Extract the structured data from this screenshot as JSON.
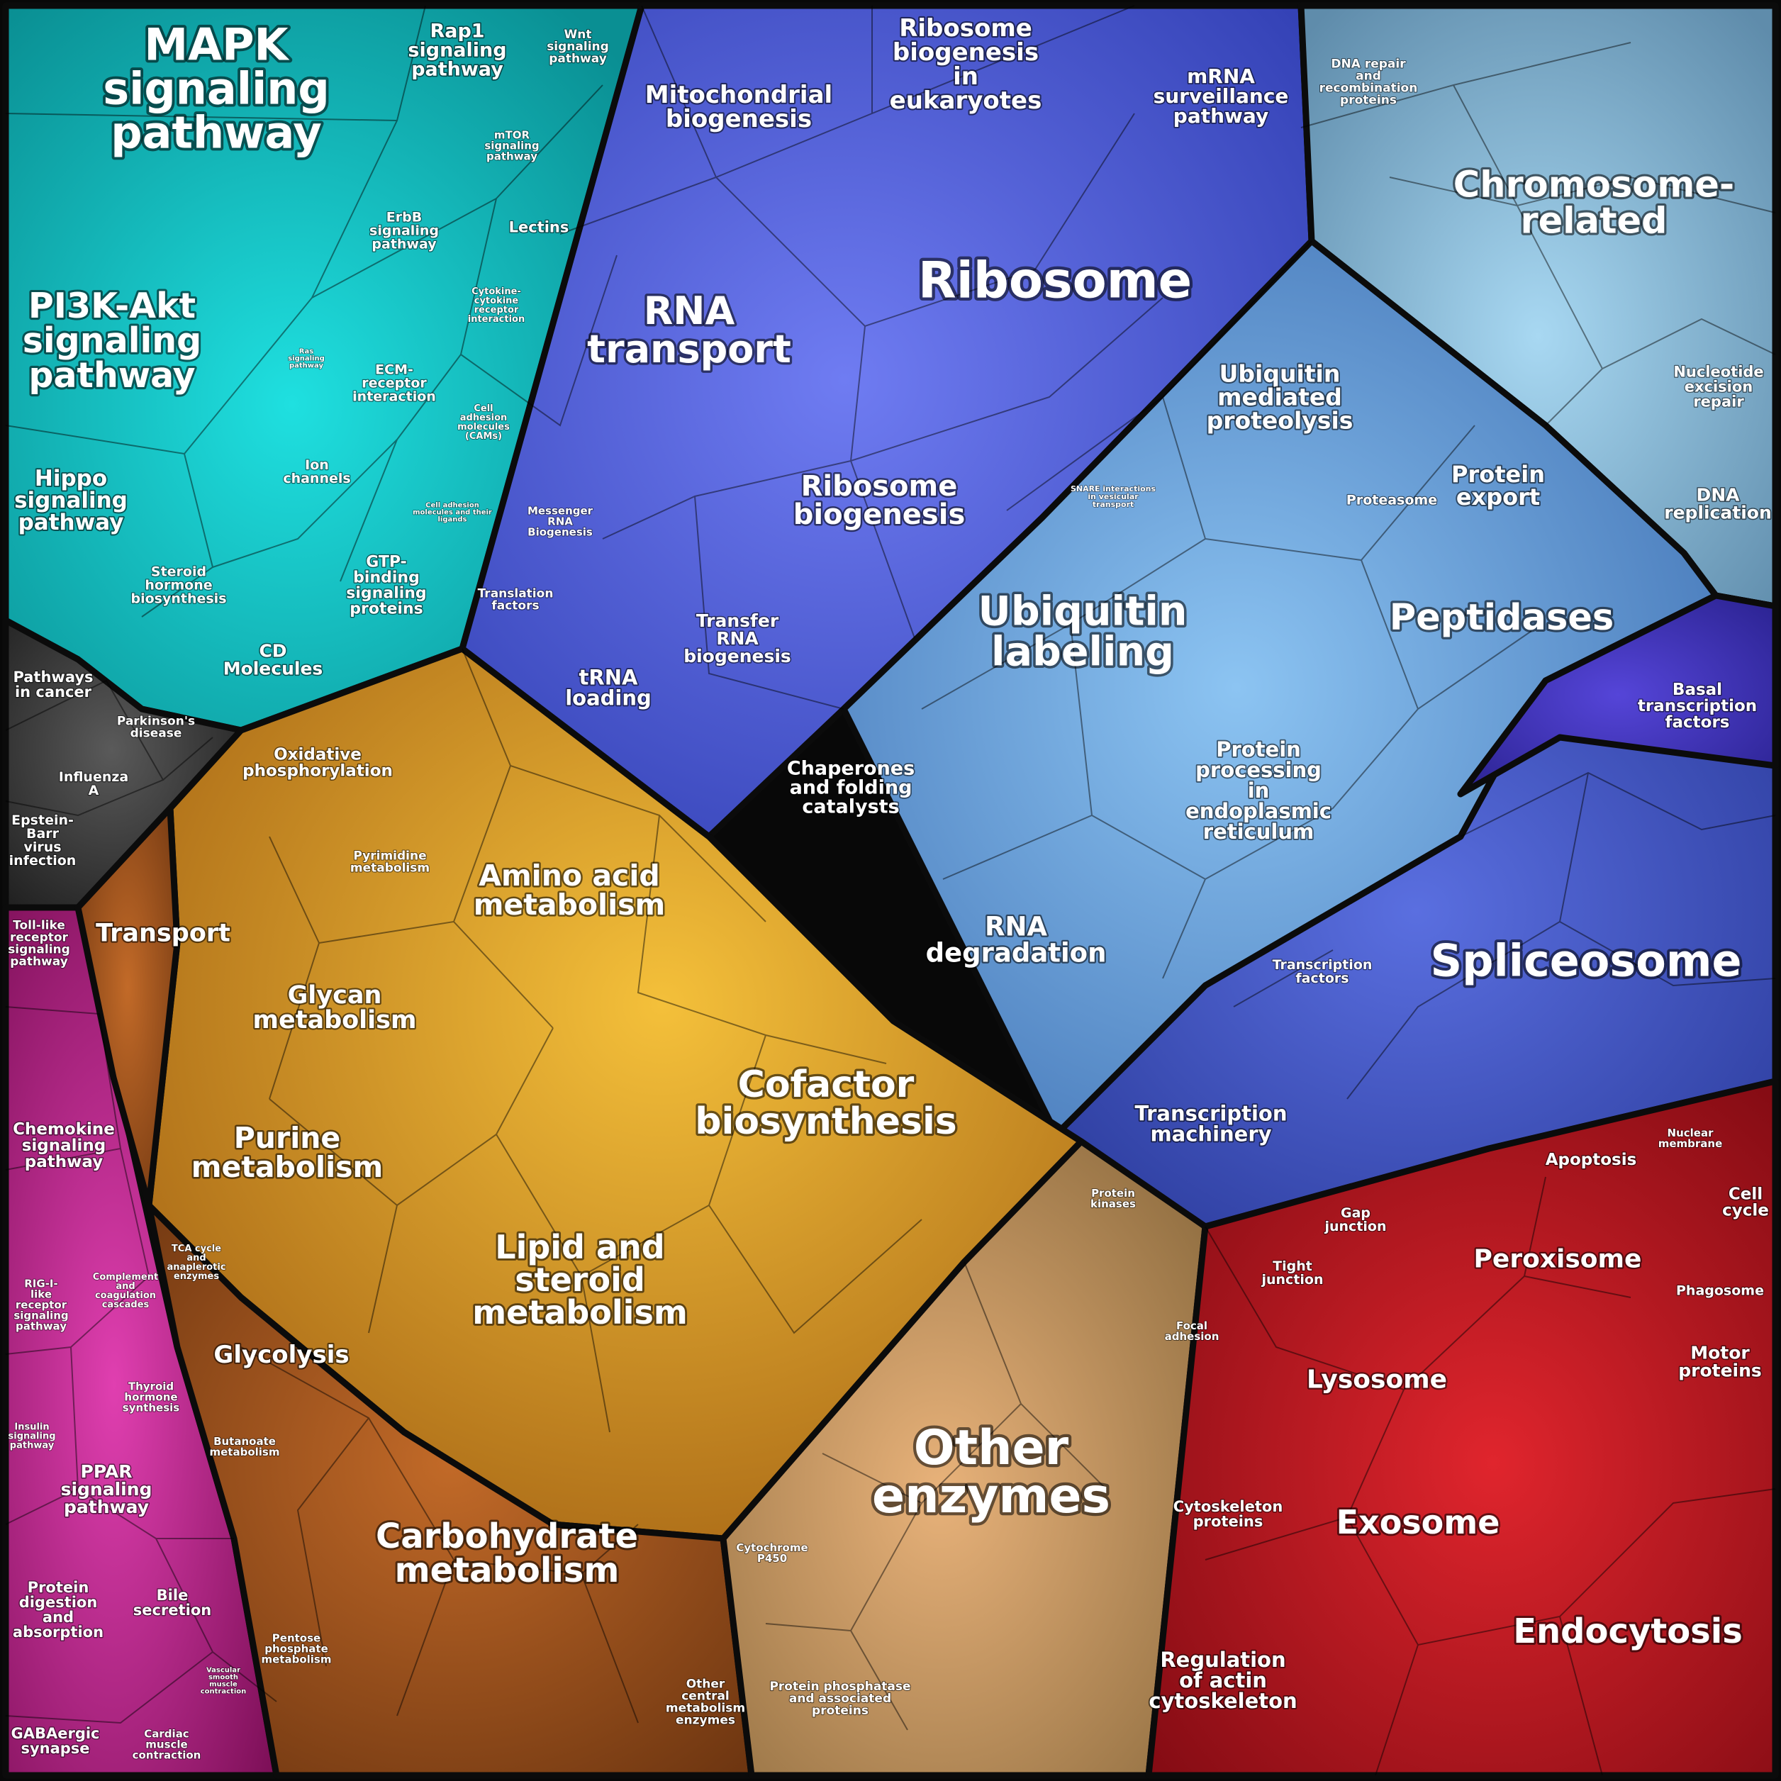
{
  "title": "",
  "groups": [
    {
      "name": "signaling",
      "color": "#14b4b4"
    },
    {
      "name": "genetic-information",
      "color": "#4b5fd8"
    },
    {
      "name": "chromosome-and-repair",
      "color": "#7db4d4"
    },
    {
      "name": "protein-processing",
      "color": "#4f8fd0"
    },
    {
      "name": "metabolism",
      "color": "#cf8a1e"
    },
    {
      "name": "other-enzymes",
      "color": "#b99565"
    },
    {
      "name": "cellular-processes",
      "color": "#c41e28"
    },
    {
      "name": "organismal-systems",
      "color": "#b8157e"
    },
    {
      "name": "human-diseases",
      "color": "#3a3a3a"
    }
  ],
  "labels": [
    {
      "text": "MAPK signaling pathway"
    },
    {
      "text": "Rap1 signaling pathway"
    },
    {
      "text": "Wnt signaling pathway"
    },
    {
      "text": "mTOR signaling pathway"
    },
    {
      "text": "ErbB signaling pathway"
    },
    {
      "text": "Lectins"
    },
    {
      "text": "PI3K-Akt signaling pathway"
    },
    {
      "text": "Ras signaling pathway"
    },
    {
      "text": "Cytokine-cytokine receptor interaction"
    },
    {
      "text": "ECM-receptor interaction"
    },
    {
      "text": "Cell adhesion molecules (CAMs)"
    },
    {
      "text": "Hippo signaling pathway"
    },
    {
      "text": "Ion channels"
    },
    {
      "text": "Cell adhesion molecules and their ligands"
    },
    {
      "text": "Steroid hormone biosynthesis"
    },
    {
      "text": "GTP-binding signaling proteins"
    },
    {
      "text": "CD Molecules"
    },
    {
      "text": "Mitochondrial biogenesis"
    },
    {
      "text": "Ribosome biogenesis in eukaryotes"
    },
    {
      "text": "mRNA surveillance pathway"
    },
    {
      "text": "DNA repair and recombination proteins"
    },
    {
      "text": "Chromosome-related"
    },
    {
      "text": "Ribosome"
    },
    {
      "text": "RNA transport"
    },
    {
      "text": "Ubiquitin mediated proteolysis"
    },
    {
      "text": "Nucleotide excision repair"
    },
    {
      "text": "Ribosome biogenesis"
    },
    {
      "text": "SNARE interactions in vesicular transport"
    },
    {
      "text": "Proteasome"
    },
    {
      "text": "Protein export"
    },
    {
      "text": "DNA replication"
    },
    {
      "text": "Messenger RNA Biogenesis"
    },
    {
      "text": "Translation factors"
    },
    {
      "text": "Transfer RNA biogenesis"
    },
    {
      "text": "tRNA loading"
    },
    {
      "text": "Ubiquitin labeling"
    },
    {
      "text": "Peptidases"
    },
    {
      "text": "Basal transcription factors"
    },
    {
      "text": "Pathways in cancer"
    },
    {
      "text": "Parkinson's disease"
    },
    {
      "text": "Influenza A"
    },
    {
      "text": "Epstein-Barr virus infection"
    },
    {
      "text": "Oxidative phosphorylation"
    },
    {
      "text": "Chaperones and folding catalysts"
    },
    {
      "text": "Protein processing in endoplasmic reticulum"
    },
    {
      "text": "Pyrimidine metabolism"
    },
    {
      "text": "Amino acid metabolism"
    },
    {
      "text": "Transport"
    },
    {
      "text": "Toll-like receptor signaling pathway"
    },
    {
      "text": "RNA degradation"
    },
    {
      "text": "Transcription factors"
    },
    {
      "text": "Spliceosome"
    },
    {
      "text": "Glycan metabolism"
    },
    {
      "text": "Cofactor biosynthesis"
    },
    {
      "text": "Chemokine signaling pathway"
    },
    {
      "text": "Transcription machinery"
    },
    {
      "text": "Purine metabolism"
    },
    {
      "text": "Nuclear membrane"
    },
    {
      "text": "Apoptosis"
    },
    {
      "text": "Protein kinases"
    },
    {
      "text": "Cell cycle"
    },
    {
      "text": "Gap junction"
    },
    {
      "text": "Peroxisome"
    },
    {
      "text": "TCA cycle and anaplerotic enzymes"
    },
    {
      "text": "Lipid and steroid metabolism"
    },
    {
      "text": "Complement and coagulation cascades"
    },
    {
      "text": "RIG-I-like receptor signaling pathway"
    },
    {
      "text": "Tight junction"
    },
    {
      "text": "Phagosome"
    },
    {
      "text": "Glycolysis"
    },
    {
      "text": "Focal adhesion"
    },
    {
      "text": "Motor proteins"
    },
    {
      "text": "Lysosome"
    },
    {
      "text": "Thyroid hormone synthesis"
    },
    {
      "text": "Butanoate metabolism"
    },
    {
      "text": "Insulin signaling pathway"
    },
    {
      "text": "Other enzymes"
    },
    {
      "text": "PPAR signaling pathway"
    },
    {
      "text": "Cytoskeleton proteins"
    },
    {
      "text": "Exosome"
    },
    {
      "text": "Cytochrome P450"
    },
    {
      "text": "Carbohydrate metabolism"
    },
    {
      "text": "Bile secretion"
    },
    {
      "text": "Protein digestion and absorption"
    },
    {
      "text": "Endocytosis"
    },
    {
      "text": "Pentose phosphate metabolism"
    },
    {
      "text": "Vascular smooth muscle contraction"
    },
    {
      "text": "Regulation of actin cytoskeleton"
    },
    {
      "text": "Protein phosphatase and associated proteins"
    },
    {
      "text": "Other central metabolism enzymes"
    },
    {
      "text": "GABAergic synapse"
    },
    {
      "text": "Cardiac muscle contraction"
    }
  ]
}
